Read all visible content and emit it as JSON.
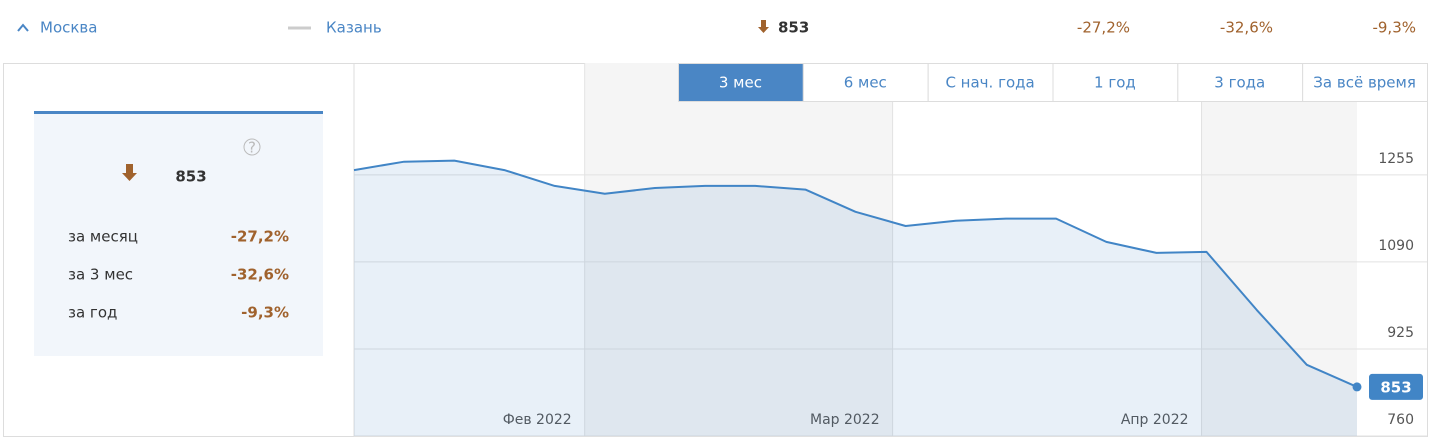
{
  "header": {
    "city": "Москва",
    "compare_city": "Казань",
    "value": "853",
    "changes": [
      "-27,2%",
      "-32,6%",
      "-9,3%"
    ]
  },
  "summary": {
    "value": "853",
    "rows": [
      [
        "за месяц",
        "-27,2%"
      ],
      [
        "за 3 мес",
        "-32,6%"
      ],
      [
        "за год",
        "-9,3%"
      ]
    ]
  },
  "tabs": [
    "3 мес",
    "6 мес",
    "С нач. года",
    "1 год",
    "3 года",
    "За всё время"
  ],
  "active_tab": 0,
  "chart_data": {
    "type": "line",
    "series": [
      {
        "name": "Москва",
        "color": "#4185c6",
        "values": [
          1264,
          1280,
          1282,
          1264,
          1234,
          1219,
          1230,
          1234,
          1234,
          1227,
          1185,
          1158,
          1168,
          1172,
          1172,
          1128,
          1107,
          1109,
          999,
          895,
          853
        ]
      }
    ],
    "ylim": [
      760,
      1467
    ],
    "yticks": [
      760,
      925,
      1090,
      1255
    ],
    "xticks": [
      {
        "value": 4.6,
        "label": "Фев 2022"
      },
      {
        "value": 10.74,
        "label": "Мар 2022"
      },
      {
        "value": 16.9,
        "label": "Апр 2022"
      }
    ],
    "grid": true
  }
}
